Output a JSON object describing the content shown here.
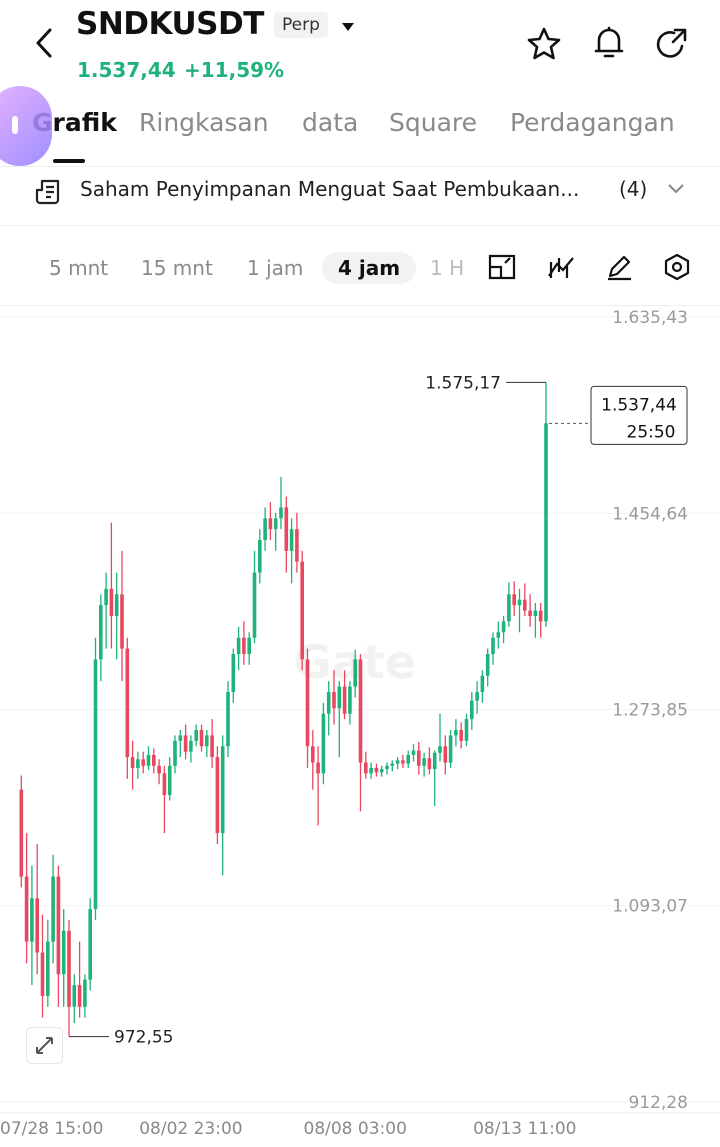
{
  "header": {
    "symbol": "SNDKUSDT",
    "badge": "Perp",
    "price": "1.537,44",
    "change": "+11,59%"
  },
  "tabs": [
    "Grafik",
    "Ringkasan",
    "data",
    "Square",
    "Perdagangan"
  ],
  "active_tab": 0,
  "news": {
    "headline": "Saham Penyimpanan Menguat Saat Pembukaan...",
    "count": "(4)"
  },
  "timeframes": [
    "5 mnt",
    "15 mnt",
    "1 jam",
    "4 jam",
    "1 H"
  ],
  "active_timeframe": 3,
  "chart_data": {
    "type": "candlestick",
    "watermark": "Gate",
    "up_color": "#1fb27a",
    "down_color": "#e8475f",
    "grid": true,
    "ylim": [
      912.28,
      1635.43
    ],
    "yticks": [
      {
        "value": 1635.43,
        "label": "1.635,43"
      },
      {
        "value": 1454.64,
        "label": "1.454,64"
      },
      {
        "value": 1273.85,
        "label": "1.273,85"
      },
      {
        "value": 1093.07,
        "label": "1.093,07"
      },
      {
        "value": 912.28,
        "label": "912,28"
      }
    ],
    "categories": [
      "07/28 15:00",
      null,
      null,
      null,
      null,
      null,
      null,
      null,
      null,
      null,
      null,
      null,
      null,
      null,
      null,
      null,
      null,
      null,
      null,
      null,
      null,
      null,
      null,
      null,
      null,
      null,
      null,
      null,
      null,
      null,
      null,
      null,
      "08/02 23:00",
      null,
      null,
      null,
      null,
      null,
      null,
      null,
      null,
      null,
      null,
      null,
      null,
      null,
      null,
      null,
      null,
      null,
      null,
      null,
      null,
      null,
      null,
      null,
      null,
      null,
      null,
      null,
      null,
      null,
      null,
      "08/08 03:00",
      null,
      null,
      null,
      null,
      null,
      null,
      null,
      null,
      null,
      null,
      null,
      null,
      null,
      null,
      null,
      null,
      null,
      null,
      null,
      null,
      null,
      null,
      null,
      null,
      null,
      null,
      null,
      null,
      null,
      null,
      null,
      "08/13 11:00",
      null,
      null,
      null,
      null
    ],
    "candles": [
      [
        1200,
        1213,
        1110,
        1120
      ],
      [
        1120,
        1160,
        1040,
        1060
      ],
      [
        1060,
        1130,
        1020,
        1100
      ],
      [
        1100,
        1150,
        1030,
        1050
      ],
      [
        1050,
        1085,
        990,
        1010
      ],
      [
        1010,
        1080,
        1000,
        1060
      ],
      [
        1060,
        1140,
        1040,
        1120
      ],
      [
        1120,
        1130,
        1000,
        1030
      ],
      [
        1030,
        1090,
        1000,
        1070
      ],
      [
        1070,
        1080,
        972.55,
        1000
      ],
      [
        1000,
        1030,
        985,
        1020
      ],
      [
        1020,
        1060,
        990,
        1000
      ],
      [
        1000,
        1030,
        990,
        1025
      ],
      [
        1025,
        1100,
        1015,
        1090
      ],
      [
        1090,
        1340,
        1080,
        1320
      ],
      [
        1320,
        1380,
        1300,
        1370
      ],
      [
        1370,
        1400,
        1330,
        1385
      ],
      [
        1385,
        1446,
        1330,
        1360
      ],
      [
        1360,
        1400,
        1320,
        1380
      ],
      [
        1380,
        1420,
        1300,
        1330
      ],
      [
        1330,
        1340,
        1210,
        1230
      ],
      [
        1230,
        1245,
        1200,
        1220
      ],
      [
        1220,
        1235,
        1210,
        1228
      ],
      [
        1228,
        1235,
        1215,
        1222
      ],
      [
        1222,
        1240,
        1218,
        1232
      ],
      [
        1232,
        1238,
        1215,
        1222
      ],
      [
        1222,
        1228,
        1205,
        1215
      ],
      [
        1215,
        1222,
        1160,
        1195
      ],
      [
        1195,
        1230,
        1190,
        1222
      ],
      [
        1222,
        1250,
        1215,
        1245
      ],
      [
        1245,
        1255,
        1230,
        1250
      ],
      [
        1250,
        1260,
        1228,
        1235
      ],
      [
        1235,
        1250,
        1225,
        1245
      ],
      [
        1245,
        1260,
        1240,
        1255
      ],
      [
        1255,
        1260,
        1235,
        1240
      ],
      [
        1240,
        1255,
        1230,
        1250
      ],
      [
        1250,
        1265,
        1220,
        1230
      ],
      [
        1230,
        1240,
        1150,
        1160
      ],
      [
        1160,
        1250,
        1121,
        1240
      ],
      [
        1240,
        1300,
        1230,
        1290
      ],
      [
        1290,
        1330,
        1280,
        1325
      ],
      [
        1325,
        1350,
        1310,
        1340
      ],
      [
        1340,
        1355,
        1315,
        1325
      ],
      [
        1325,
        1345,
        1315,
        1340
      ],
      [
        1340,
        1420,
        1335,
        1400
      ],
      [
        1400,
        1440,
        1390,
        1430
      ],
      [
        1430,
        1460,
        1420,
        1450
      ],
      [
        1450,
        1465,
        1430,
        1440
      ],
      [
        1440,
        1455,
        1420,
        1450
      ],
      [
        1450,
        1488,
        1440,
        1460
      ],
      [
        1460,
        1470,
        1400,
        1420
      ],
      [
        1420,
        1450,
        1390,
        1440
      ],
      [
        1440,
        1455,
        1400,
        1410
      ],
      [
        1410,
        1420,
        1310,
        1320
      ],
      [
        1320,
        1330,
        1220,
        1240
      ],
      [
        1240,
        1255,
        1200,
        1225
      ],
      [
        1225,
        1240,
        1167,
        1215
      ],
      [
        1215,
        1280,
        1205,
        1270
      ],
      [
        1270,
        1300,
        1250,
        1290
      ],
      [
        1290,
        1310,
        1260,
        1275
      ],
      [
        1275,
        1300,
        1230,
        1295
      ],
      [
        1295,
        1310,
        1265,
        1270
      ],
      [
        1270,
        1300,
        1260,
        1295
      ],
      [
        1295,
        1329,
        1285,
        1320
      ],
      [
        1320,
        1325,
        1180,
        1225
      ],
      [
        1225,
        1235,
        1210,
        1215
      ],
      [
        1215,
        1225,
        1210,
        1220
      ],
      [
        1220,
        1224,
        1212,
        1216
      ],
      [
        1216,
        1222,
        1212,
        1219
      ],
      [
        1219,
        1225,
        1214,
        1222
      ],
      [
        1222,
        1227,
        1217,
        1224
      ],
      [
        1224,
        1230,
        1219,
        1227
      ],
      [
        1227,
        1232,
        1220,
        1224
      ],
      [
        1224,
        1236,
        1220,
        1232
      ],
      [
        1232,
        1242,
        1226,
        1236
      ],
      [
        1236,
        1244,
        1214,
        1222
      ],
      [
        1222,
        1234,
        1212,
        1229
      ],
      [
        1229,
        1239,
        1214,
        1219
      ],
      [
        1219,
        1236,
        1185,
        1234
      ],
      [
        1234,
        1270,
        1226,
        1240
      ],
      [
        1240,
        1250,
        1214,
        1225
      ],
      [
        1225,
        1255,
        1220,
        1250
      ],
      [
        1250,
        1265,
        1240,
        1255
      ],
      [
        1255,
        1262,
        1238,
        1245
      ],
      [
        1245,
        1270,
        1240,
        1265
      ],
      [
        1265,
        1290,
        1255,
        1282
      ],
      [
        1282,
        1300,
        1270,
        1290
      ],
      [
        1290,
        1310,
        1280,
        1305
      ],
      [
        1305,
        1330,
        1295,
        1325
      ],
      [
        1325,
        1345,
        1315,
        1340
      ],
      [
        1340,
        1355,
        1330,
        1345
      ],
      [
        1345,
        1360,
        1335,
        1355
      ],
      [
        1355,
        1391,
        1350,
        1380
      ],
      [
        1380,
        1392,
        1360,
        1370
      ],
      [
        1370,
        1385,
        1345,
        1375
      ],
      [
        1375,
        1390,
        1360,
        1365
      ],
      [
        1365,
        1380,
        1350,
        1360
      ],
      [
        1360,
        1372,
        1340,
        1365
      ],
      [
        1365,
        1372,
        1340,
        1355
      ],
      [
        1355,
        1575.17,
        1350,
        1537.44
      ]
    ],
    "max_label": {
      "value": 1575.17,
      "label": "1.575,17"
    },
    "min_label": {
      "value": 972.55,
      "label": "972,55"
    },
    "last_price": {
      "value": 1537.44,
      "label": "1.537,44",
      "countdown": "25:50"
    }
  }
}
